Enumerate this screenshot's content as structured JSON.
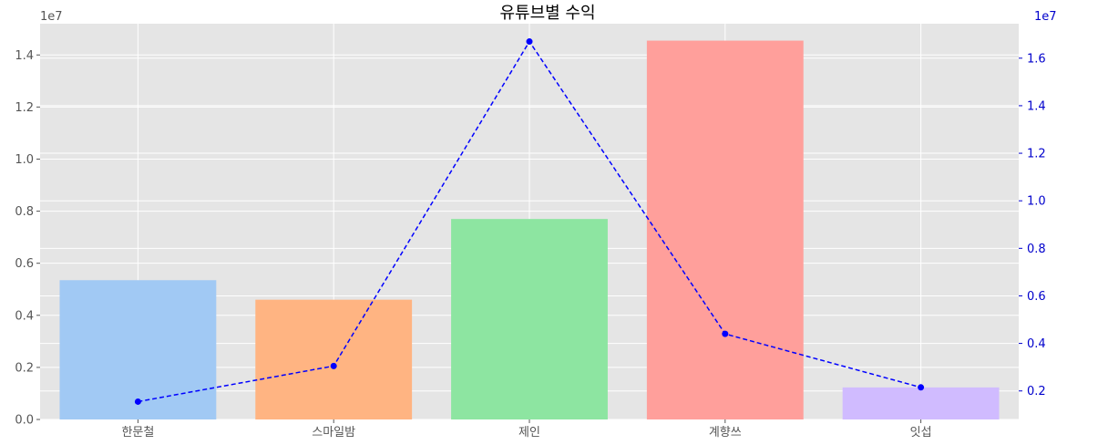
{
  "chart_data": {
    "type": "bar",
    "title": "유튜브별 수익",
    "categories": [
      "한문철",
      "스마일밤",
      "제인",
      "계향쓰",
      "잇섭"
    ],
    "bar_values": [
      5350000,
      4600000,
      7700000,
      14550000,
      1230000
    ],
    "bar_colors": [
      "#a1c9f4",
      "#ffb482",
      "#8de5a1",
      "#ff9f9b",
      "#d0bbff"
    ],
    "line_values": [
      1550000,
      3050000,
      16700000,
      4400000,
      2150000
    ],
    "line_color": "#0000ff",
    "line_style": "dashed",
    "left_axis": {
      "ylim": [
        0,
        15200000
      ],
      "ticks": [
        0,
        2000000,
        4000000,
        6000000,
        8000000,
        10000000,
        12000000,
        14000000
      ],
      "tick_labels": [
        "0.0",
        "0.2",
        "0.4",
        "0.6",
        "0.8",
        "1.0",
        "1.2",
        "1.4"
      ],
      "offset_label": "1e7",
      "color": "#555555"
    },
    "right_axis": {
      "ylim": [
        800000,
        17450000
      ],
      "ticks": [
        2000000,
        4000000,
        6000000,
        8000000,
        10000000,
        12000000,
        14000000,
        16000000
      ],
      "tick_labels": [
        "0.2",
        "0.4",
        "0.6",
        "0.8",
        "1.0",
        "1.2",
        "1.4",
        "1.6"
      ],
      "offset_label": "1e7",
      "color": "#0000cc"
    },
    "grid": true,
    "background": "#e5e5e5"
  }
}
